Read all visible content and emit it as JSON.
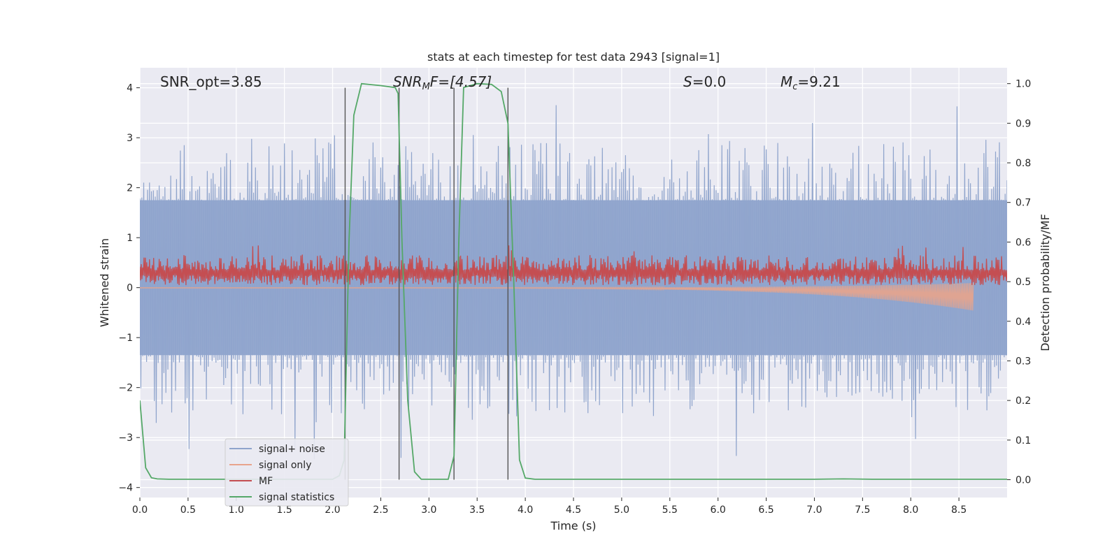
{
  "chart_data": {
    "type": "line",
    "title": "stats at each timestep for test data 2943 [signal=1]",
    "xlabel": "Time (s)",
    "ylabel": "Whitened strain",
    "y2label": "Detection probability/MF",
    "xlim": [
      0.0,
      9.0
    ],
    "ylim": [
      -4.2,
      4.4
    ],
    "y2lim": [
      -0.045,
      1.04
    ],
    "xticks": [
      "0.0",
      "0.5",
      "1.0",
      "1.5",
      "2.0",
      "2.5",
      "3.0",
      "3.5",
      "4.0",
      "4.5",
      "5.0",
      "5.5",
      "6.0",
      "6.5",
      "7.0",
      "7.5",
      "8.0",
      "8.5"
    ],
    "xtick_values": [
      0.0,
      0.5,
      1.0,
      1.5,
      2.0,
      2.5,
      3.0,
      3.5,
      4.0,
      4.5,
      5.0,
      5.5,
      6.0,
      6.5,
      7.0,
      7.5,
      8.0,
      8.5
    ],
    "yticks": [
      "−4",
      "−3",
      "−2",
      "−1",
      "0",
      "1",
      "2",
      "3",
      "4"
    ],
    "ytick_values": [
      -4,
      -3,
      -2,
      -1,
      0,
      1,
      2,
      3,
      4
    ],
    "y2ticks": [
      "0.0",
      "0.1",
      "0.2",
      "0.3",
      "0.4",
      "0.5",
      "0.6",
      "0.7",
      "0.8",
      "0.9",
      "1.0"
    ],
    "y2tick_values": [
      0.0,
      0.1,
      0.2,
      0.3,
      0.4,
      0.5,
      0.6,
      0.7,
      0.8,
      0.9,
      1.0
    ],
    "grid": true,
    "legend_position": "lower-left",
    "annotations": {
      "snr_opt": "SNR_opt=3.85",
      "snr_mf_main": "SNR",
      "snr_mf_sub": "M",
      "snr_mf_rest": "F=[4.57]",
      "s_main": "S",
      "s_rest": "=0.0",
      "mc_main": "M",
      "mc_sub": "c",
      "mc_rest": "=9.21"
    },
    "vertical_lines_x": [
      2.13,
      2.69,
      3.26,
      3.82
    ],
    "series": [
      {
        "name": "signal+ noise",
        "color": "#8fa4cc",
        "axis": "left",
        "kind": "noise",
        "typical_range": [
          -1.35,
          1.75
        ],
        "extreme_range": [
          -3.65,
          4.0
        ],
        "x_range": [
          0.0,
          9.0
        ]
      },
      {
        "name": "signal only",
        "color": "#e8a48c",
        "axis": "left",
        "kind": "chirp",
        "x_range": [
          0.0,
          8.65
        ],
        "amplitude_end": 0.45
      },
      {
        "name": "MF",
        "color": "#c44e52",
        "axis": "left",
        "kind": "noise",
        "typical_range": [
          0.05,
          0.6
        ],
        "extreme_range": [
          0.0,
          0.95
        ],
        "x_range": [
          0.0,
          9.0
        ]
      },
      {
        "name": "signal statistics",
        "color": "#55a868",
        "axis": "right",
        "x": [
          0.0,
          0.06,
          0.12,
          0.18,
          0.3,
          1.0,
          2.0,
          2.07,
          2.12,
          2.17,
          2.22,
          2.3,
          2.5,
          2.65,
          2.68,
          2.72,
          2.78,
          2.85,
          2.92,
          3.0,
          3.2,
          3.26,
          3.31,
          3.36,
          3.5,
          3.65,
          3.75,
          3.82,
          3.88,
          3.94,
          4.0,
          4.1,
          5.0,
          6.0,
          7.0,
          7.3,
          7.6,
          8.0,
          9.0
        ],
        "values": [
          0.2,
          0.03,
          0.005,
          0.002,
          0.001,
          0.001,
          0.001,
          0.01,
          0.05,
          0.6,
          0.92,
          1.0,
          0.995,
          0.99,
          0.975,
          0.6,
          0.2,
          0.02,
          0.001,
          0.001,
          0.001,
          0.06,
          0.6,
          0.99,
          1.0,
          0.998,
          0.98,
          0.9,
          0.5,
          0.05,
          0.004,
          0.001,
          0.001,
          0.001,
          0.001,
          0.002,
          0.001,
          0.001,
          0.001
        ]
      }
    ]
  }
}
